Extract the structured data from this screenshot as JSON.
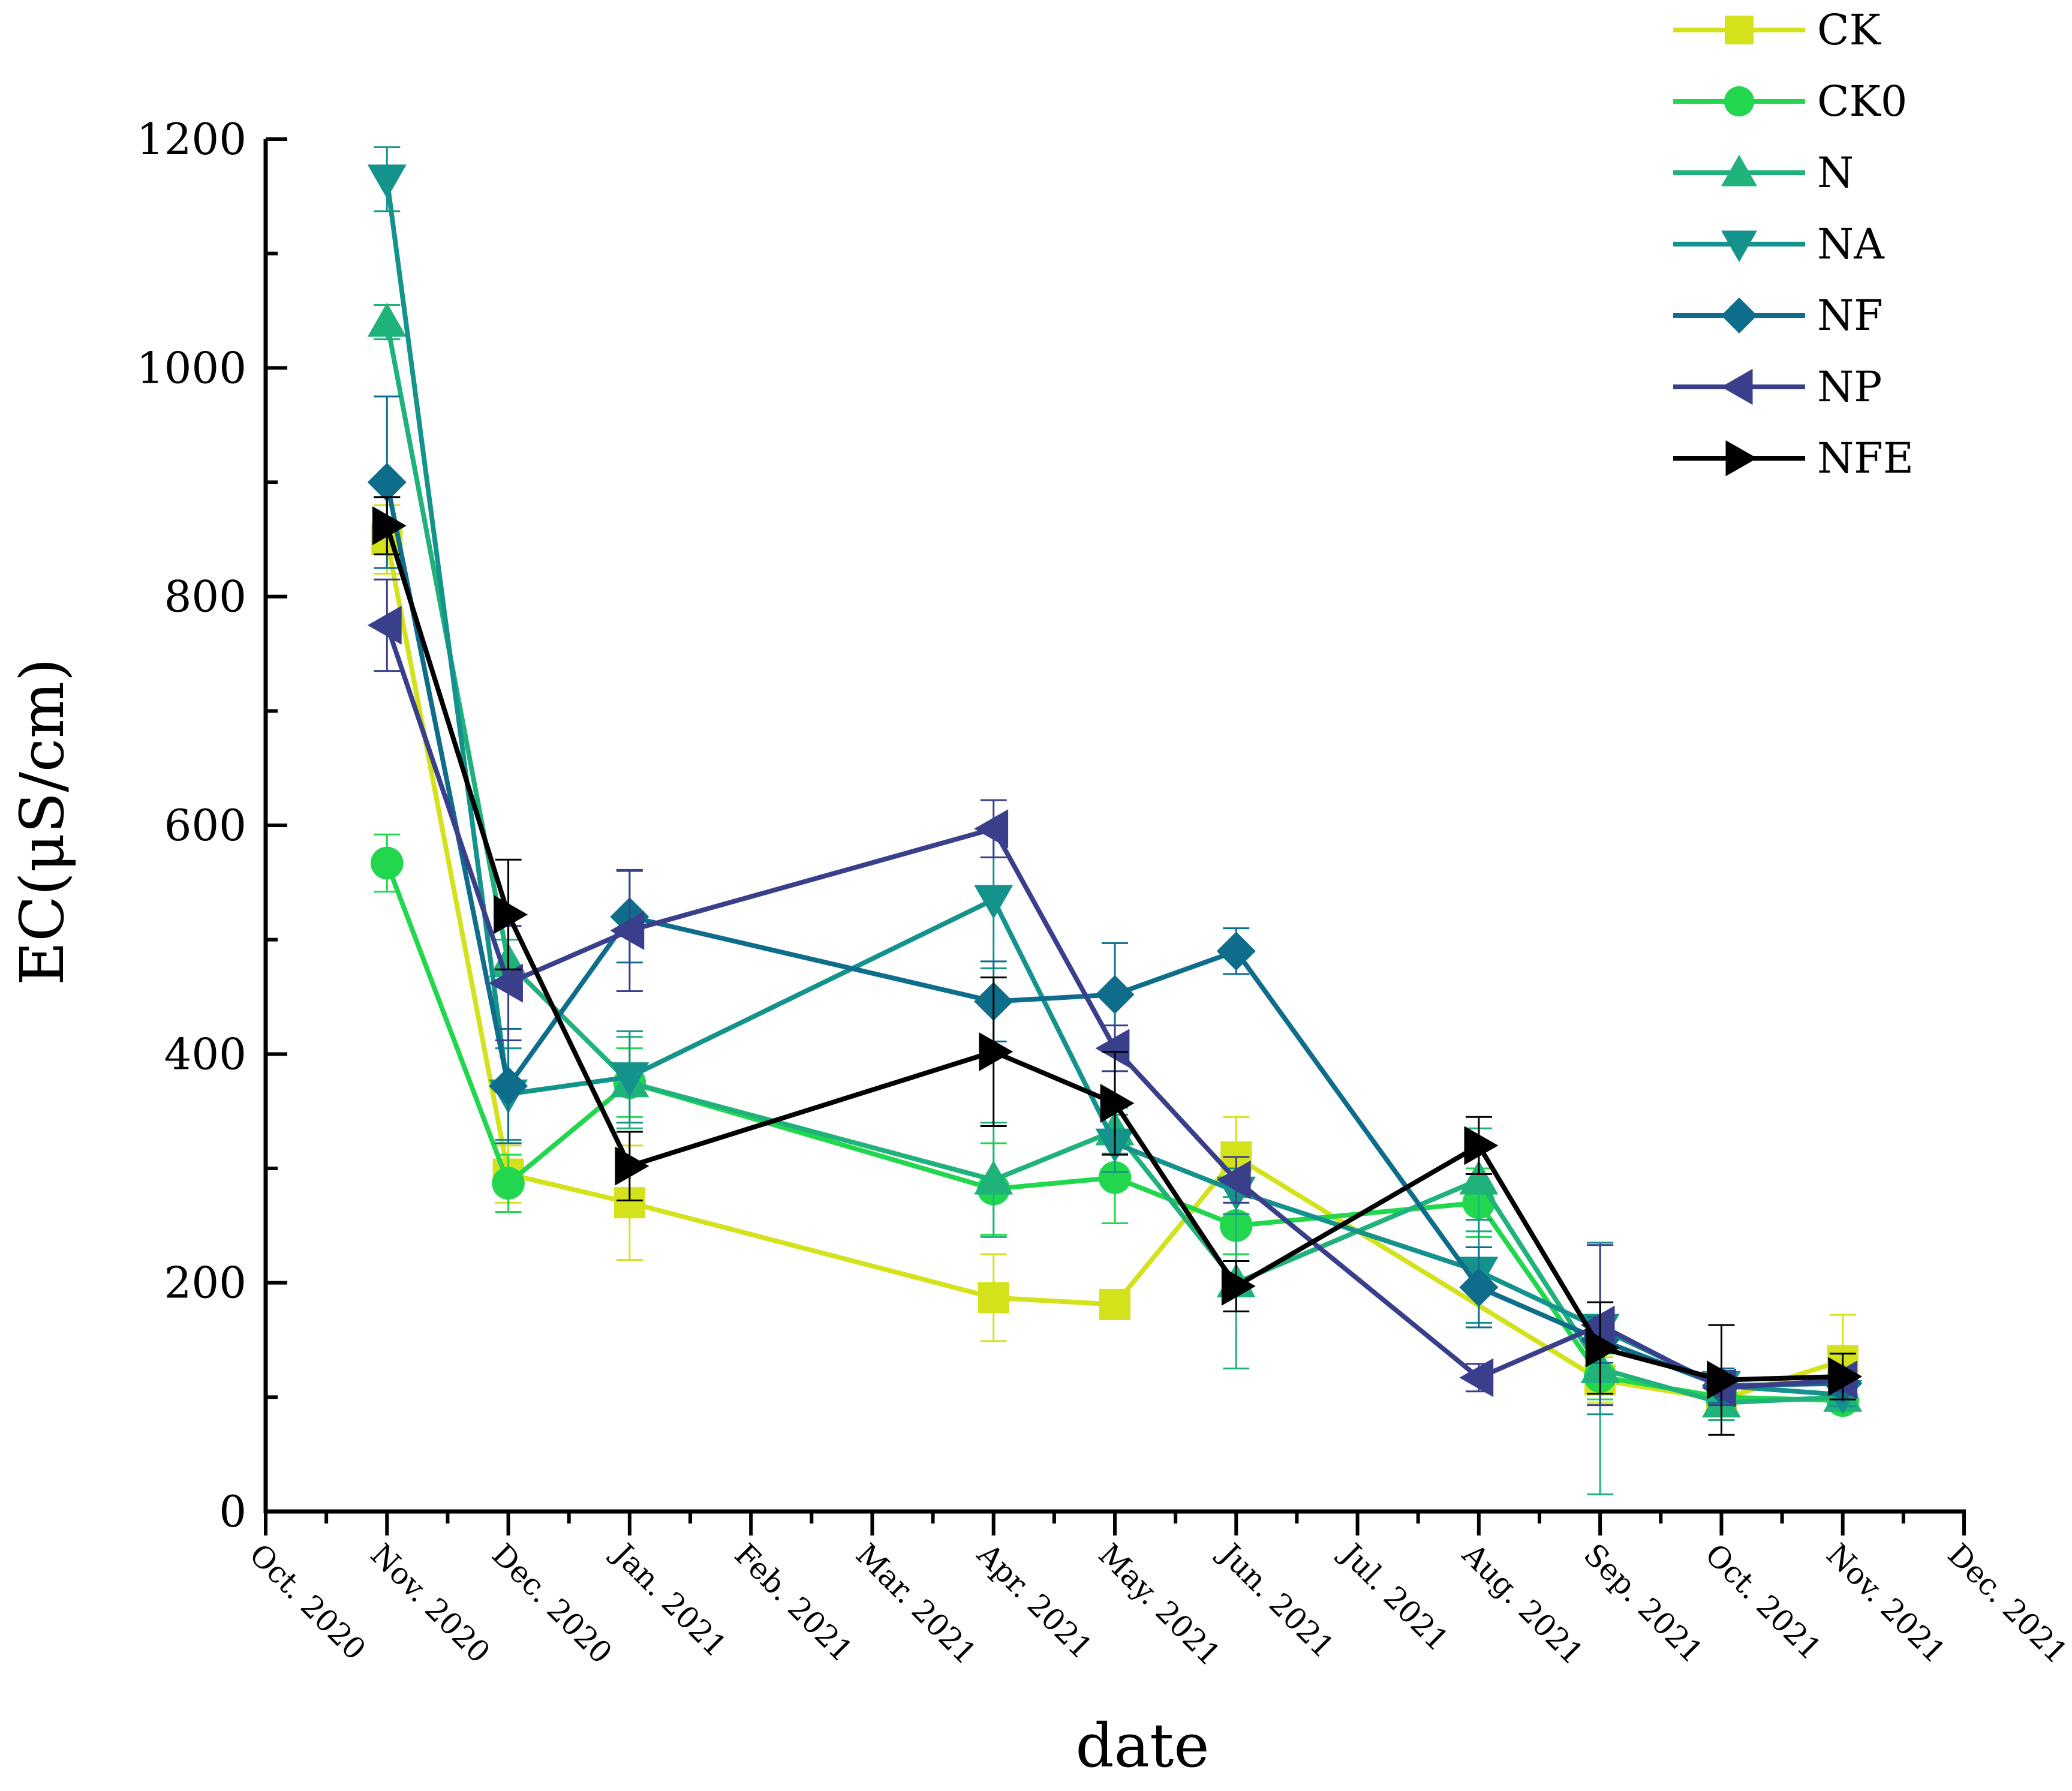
{
  "chart_data": {
    "type": "line",
    "title": "",
    "xlabel": "date",
    "ylabel": "EC(μS/cm)",
    "ylim": [
      0,
      1200
    ],
    "yticks": [
      0,
      200,
      400,
      600,
      800,
      1000,
      1200
    ],
    "x_tick_labels": [
      "Oct. 2020",
      "Nov. 2020",
      "Dec. 2020",
      "Jan. 2021",
      "Feb. 2021",
      "Mar. 2021",
      "Apr. 2021",
      "May. 2021",
      "Jun. 2021",
      "Jul. 2021",
      "Aug. 2021",
      "Sep. 2021",
      "Oct. 2021",
      "Nov. 2021",
      "Dec. 2021"
    ],
    "x_months": [
      0,
      1,
      2,
      3,
      4,
      5,
      6,
      7,
      8,
      9,
      10,
      11,
      12,
      13,
      14
    ],
    "legend_position": "top-right",
    "grid": false,
    "series": [
      {
        "name": "CK",
        "color": "#d4e21b",
        "marker": "square",
        "x": [
          1,
          2,
          3,
          6,
          7,
          8,
          11,
          12,
          13
        ],
        "y": [
          850,
          295,
          270,
          187,
          181,
          310,
          115,
          98,
          132
        ],
        "err": [
          30,
          25,
          50,
          38,
          12,
          35,
          20,
          12,
          40
        ]
      },
      {
        "name": "CK0",
        "color": "#22d74e",
        "marker": "circle",
        "x": [
          1,
          2,
          3,
          6,
          7,
          8,
          10,
          11,
          12,
          13
        ],
        "y": [
          567,
          287,
          375,
          282,
          292,
          250,
          270,
          118,
          100,
          97
        ],
        "err": [
          25,
          25,
          30,
          40,
          40,
          25,
          30,
          20,
          12,
          8
        ]
      },
      {
        "name": "N",
        "color": "#1fb27a",
        "marker": "triangle-up",
        "x": [
          1,
          2,
          3,
          6,
          7,
          8,
          10,
          11,
          12,
          13
        ],
        "y": [
          1040,
          480,
          375,
          290,
          333,
          200,
          290,
          125,
          95,
          100
        ],
        "err": [
          15,
          20,
          40,
          50,
          20,
          75,
          45,
          110,
          15,
          12
        ]
      },
      {
        "name": "NA",
        "color": "#14928c",
        "marker": "triangle-down",
        "x": [
          1,
          2,
          3,
          6,
          7,
          8,
          10,
          11,
          12,
          13
        ],
        "y": [
          1165,
          365,
          380,
          535,
          322,
          280,
          210,
          160,
          110,
          102
        ],
        "err": [
          28,
          40,
          40,
          60,
          25,
          20,
          45,
          75,
          15,
          10
        ]
      },
      {
        "name": "NF",
        "color": "#0f6d8c",
        "marker": "diamond",
        "x": [
          1,
          2,
          3,
          6,
          7,
          8,
          10,
          11,
          12,
          13
        ],
        "y": [
          900,
          372,
          520,
          446,
          452,
          490,
          196,
          150,
          110,
          112
        ],
        "err": [
          75,
          50,
          40,
          35,
          45,
          20,
          35,
          20,
          15,
          10
        ]
      },
      {
        "name": "NP",
        "color": "#3a3f8c",
        "marker": "triangle-left",
        "x": [
          1,
          2,
          3,
          6,
          7,
          8,
          10,
          11,
          12,
          13
        ],
        "y": [
          775,
          462,
          508,
          597,
          405,
          290,
          117,
          163,
          108,
          115
        ],
        "err": [
          40,
          50,
          53,
          25,
          20,
          20,
          12,
          70,
          15,
          10
        ]
      },
      {
        "name": "NFE",
        "color": "#000000",
        "marker": "triangle-right",
        "x": [
          1,
          2,
          3,
          6,
          7,
          8,
          10,
          11,
          12,
          13
        ],
        "y": [
          862,
          522,
          302,
          402,
          357,
          197,
          320,
          143,
          115,
          118
        ],
        "err": [
          25,
          48,
          30,
          65,
          45,
          22,
          25,
          40,
          48,
          20
        ]
      }
    ]
  }
}
